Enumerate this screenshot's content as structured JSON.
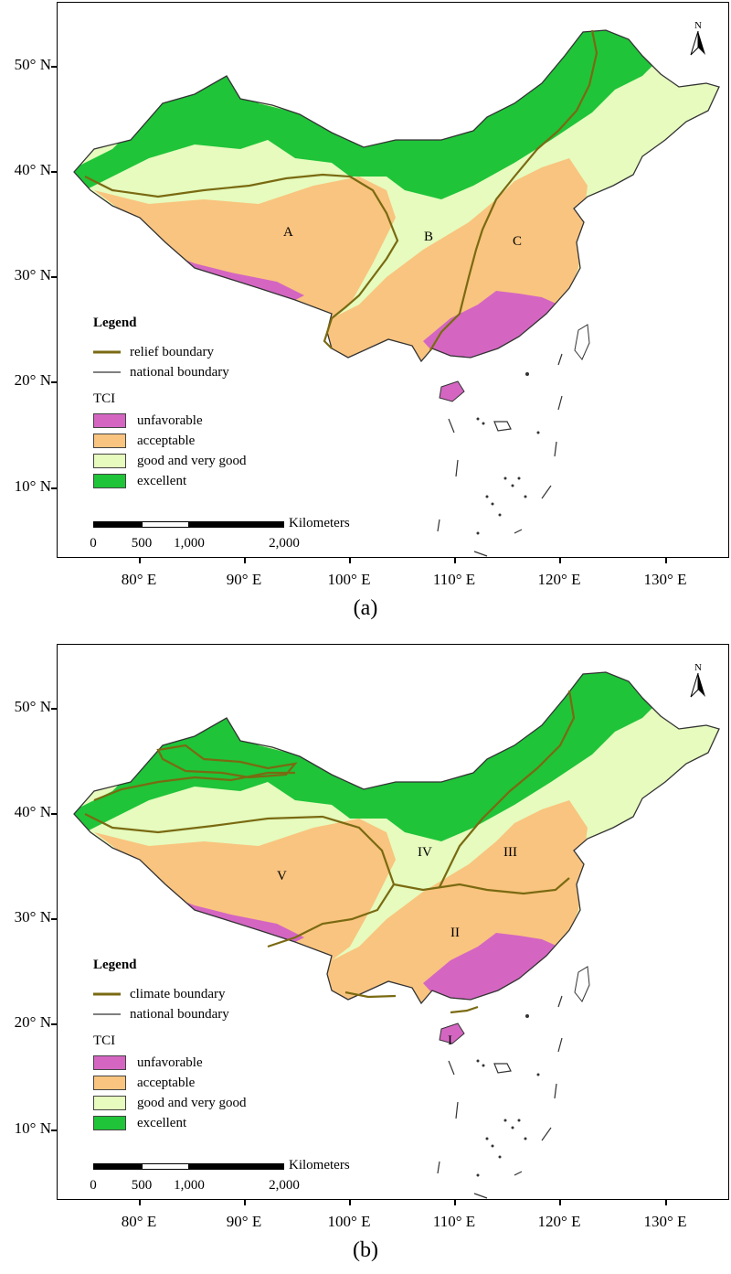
{
  "panels": [
    {
      "caption": "(a)",
      "north_label": "N",
      "legend": {
        "title": "Legend",
        "boundary_label": "relief boundary",
        "national_label": "national boundary",
        "tci_title": "TCI",
        "classes": [
          "unfavorable",
          "acceptable",
          "good and very good",
          "excellent"
        ]
      },
      "regions": [
        "A",
        "B",
        "C"
      ]
    },
    {
      "caption": "(b)",
      "north_label": "N",
      "legend": {
        "title": "Legend",
        "boundary_label": "climate boundary",
        "national_label": "national boundary",
        "tci_title": "TCI",
        "classes": [
          "unfavorable",
          "acceptable",
          "good and very good",
          "excellent"
        ]
      },
      "regions": [
        "I",
        "II",
        "III",
        "IV",
        "V"
      ]
    }
  ],
  "lat_labels": [
    "50° N",
    "40° N",
    "30° N",
    "20° N",
    "10° N"
  ],
  "lon_labels": [
    "80° E",
    "90° E",
    "100° E",
    "110° E",
    "120° E",
    "130° E"
  ],
  "scalebar": {
    "unit": "Kilometers",
    "labels": [
      "0",
      "500",
      "1,000",
      "2,000"
    ]
  },
  "colors": {
    "unfavorable": "#d466c2",
    "acceptable": "#f9c47f",
    "good_and_very_good": "#e6fbbd",
    "excellent": "#1fc439",
    "relief_boundary": "#7a6a12",
    "national_boundary": "#333333"
  }
}
